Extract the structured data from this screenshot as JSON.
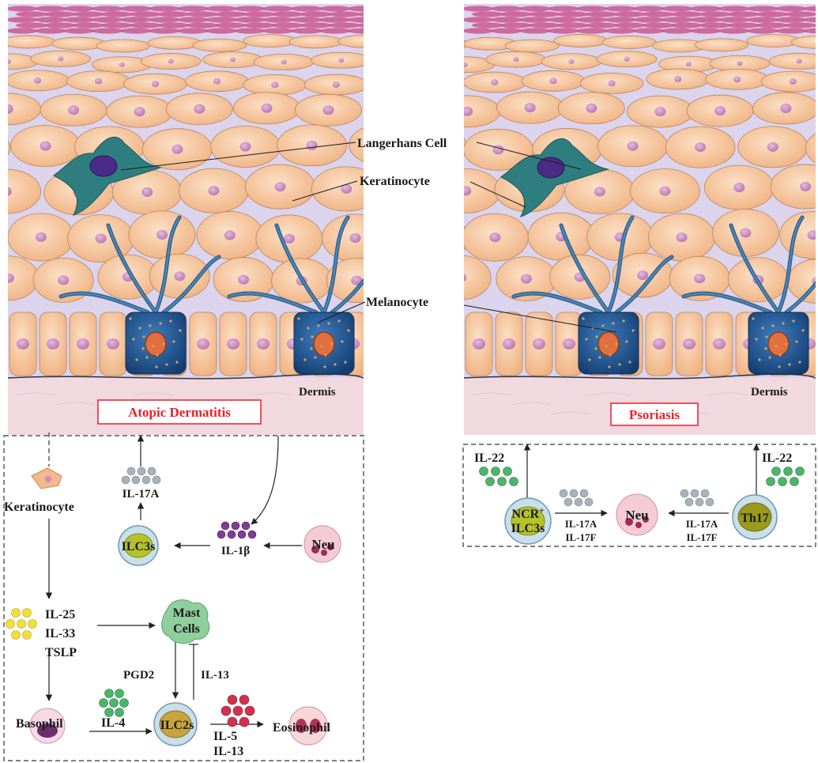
{
  "colors": {
    "keratinocyte": "#f6c49a",
    "keratinocyte_stroke": "#b7865c",
    "nucleus": "#c98bc1",
    "intercellular": "#dcd3ec",
    "stratum_corneum": "#c9578f",
    "dermis": "#f1d9df",
    "langerhans": "#2f7e7f",
    "langerhans_nucleus": "#4a2b87",
    "melanocyte": "#1f5a98",
    "title_red": "#e8212a",
    "ilc3": "#b5c32a",
    "ilc2": "#c7a43e",
    "mast": "#8fcf9c",
    "neu": "#f3c8d2",
    "il17": "#aeb5bd",
    "il1b": "#7f3d93",
    "il25": "#f3df3a",
    "il4": "#4fb46b",
    "il5": "#d0324c",
    "il22": "#4fb46b"
  },
  "ad_panel": {
    "langerhans_label": "Langerhans Cell",
    "keratinocyte_label": "Keratinocyte",
    "melanocyte_label": "Melanocyte",
    "dermis_label": "Dermis",
    "title": "Atopic Dermatitis"
  },
  "ps_panel": {
    "dermis_label": "Dermis",
    "title": "Psoriasis"
  },
  "ad_pathway": {
    "keratinocyte": "Keratinocyte",
    "il17a": "IL-17A",
    "ilc3s": "ILC3s",
    "il1b": "IL-1β",
    "neu": "Neu",
    "il25": "IL-25",
    "il33": "IL-33",
    "tslp": "TSLP",
    "mast_line1": "Mast",
    "mast_line2": "Cells",
    "pgd2": "PGD2",
    "il13_inhib": "IL-13",
    "basophil": "Basophil",
    "il4": "IL-4",
    "ilc2s": "ILC2s",
    "il5": "IL-5",
    "il13": "IL-13",
    "eosinophil": "Eosinophil"
  },
  "ps_pathway": {
    "il22_left": "IL-22",
    "il22_right": "IL-22",
    "ncr_line1": "NCR",
    "ncr_sup": "+",
    "ncr_line2": "ILC3s",
    "il17a_left": "IL-17A",
    "il17f_left": "IL-17F",
    "neu": "Neu",
    "il17a_right": "IL-17A",
    "il17f_right": "IL-17F",
    "th17": "Th17"
  }
}
